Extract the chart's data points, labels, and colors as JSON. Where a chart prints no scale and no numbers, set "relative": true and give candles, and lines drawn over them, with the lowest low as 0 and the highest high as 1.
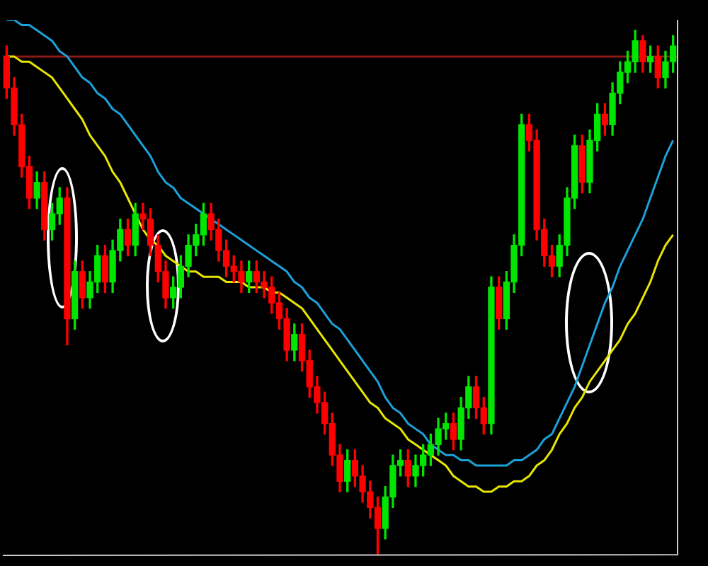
{
  "chart_data": {
    "type": "candlestick",
    "relative": true,
    "categories": [
      null,
      null,
      null,
      null,
      null,
      null,
      null,
      null,
      null,
      null,
      null,
      null,
      null,
      null,
      null,
      null,
      null,
      null,
      null,
      null,
      null,
      null,
      null,
      null,
      null,
      null,
      null,
      null,
      null,
      null,
      null,
      null,
      null,
      null,
      null,
      null,
      null,
      null,
      null,
      null,
      null,
      null,
      null,
      null,
      null,
      null,
      null,
      null,
      null,
      null,
      null,
      null,
      null,
      null,
      null,
      null,
      null,
      null,
      null,
      null,
      null,
      null,
      null,
      null,
      null,
      null,
      null,
      null,
      null,
      null,
      null,
      null,
      null,
      null,
      null,
      null,
      null,
      null,
      null,
      null,
      null,
      null,
      null,
      null,
      null,
      null,
      null,
      null,
      null
    ],
    "ohlc": [
      [
        0.95,
        0.97,
        0.87,
        0.89
      ],
      [
        0.89,
        0.91,
        0.8,
        0.82
      ],
      [
        0.82,
        0.84,
        0.72,
        0.74
      ],
      [
        0.74,
        0.76,
        0.66,
        0.68
      ],
      [
        0.68,
        0.73,
        0.66,
        0.71
      ],
      [
        0.71,
        0.73,
        0.6,
        0.62
      ],
      [
        0.62,
        0.67,
        0.6,
        0.65
      ],
      [
        0.65,
        0.7,
        0.63,
        0.68
      ],
      [
        0.68,
        0.7,
        0.4,
        0.45
      ],
      [
        0.45,
        0.56,
        0.43,
        0.54
      ],
      [
        0.54,
        0.56,
        0.47,
        0.49
      ],
      [
        0.49,
        0.54,
        0.47,
        0.52
      ],
      [
        0.52,
        0.59,
        0.5,
        0.57
      ],
      [
        0.57,
        0.59,
        0.5,
        0.52
      ],
      [
        0.52,
        0.6,
        0.5,
        0.58
      ],
      [
        0.58,
        0.64,
        0.56,
        0.62
      ],
      [
        0.62,
        0.64,
        0.57,
        0.59
      ],
      [
        0.59,
        0.67,
        0.57,
        0.65
      ],
      [
        0.65,
        0.67,
        0.62,
        0.64
      ],
      [
        0.64,
        0.66,
        0.57,
        0.59
      ],
      [
        0.59,
        0.61,
        0.52,
        0.54
      ],
      [
        0.54,
        0.56,
        0.47,
        0.49
      ],
      [
        0.49,
        0.53,
        0.47,
        0.51
      ],
      [
        0.51,
        0.57,
        0.49,
        0.55
      ],
      [
        0.55,
        0.61,
        0.53,
        0.59
      ],
      [
        0.59,
        0.63,
        0.57,
        0.61
      ],
      [
        0.61,
        0.67,
        0.59,
        0.65
      ],
      [
        0.65,
        0.67,
        0.6,
        0.62
      ],
      [
        0.62,
        0.64,
        0.56,
        0.58
      ],
      [
        0.58,
        0.6,
        0.53,
        0.55
      ],
      [
        0.55,
        0.57,
        0.52,
        0.54
      ],
      [
        0.54,
        0.56,
        0.5,
        0.52
      ],
      [
        0.52,
        0.56,
        0.5,
        0.54
      ],
      [
        0.54,
        0.56,
        0.5,
        0.52
      ],
      [
        0.52,
        0.54,
        0.49,
        0.51
      ],
      [
        0.51,
        0.53,
        0.46,
        0.48
      ],
      [
        0.48,
        0.5,
        0.43,
        0.45
      ],
      [
        0.45,
        0.47,
        0.37,
        0.39
      ],
      [
        0.39,
        0.44,
        0.37,
        0.42
      ],
      [
        0.42,
        0.44,
        0.35,
        0.37
      ],
      [
        0.37,
        0.39,
        0.3,
        0.32
      ],
      [
        0.32,
        0.34,
        0.27,
        0.29
      ],
      [
        0.29,
        0.31,
        0.23,
        0.25
      ],
      [
        0.25,
        0.27,
        0.17,
        0.19
      ],
      [
        0.19,
        0.21,
        0.12,
        0.14
      ],
      [
        0.14,
        0.2,
        0.12,
        0.18
      ],
      [
        0.18,
        0.2,
        0.13,
        0.15
      ],
      [
        0.15,
        0.17,
        0.1,
        0.12
      ],
      [
        0.12,
        0.14,
        0.07,
        0.09
      ],
      [
        0.09,
        0.11,
        0,
        0.05
      ],
      [
        0.05,
        0.13,
        0.03,
        0.11
      ],
      [
        0.11,
        0.19,
        0.09,
        0.17
      ],
      [
        0.17,
        0.2,
        0.15,
        0.18
      ],
      [
        0.18,
        0.2,
        0.13,
        0.15
      ],
      [
        0.15,
        0.19,
        0.13,
        0.17
      ],
      [
        0.17,
        0.21,
        0.15,
        0.19
      ],
      [
        0.19,
        0.23,
        0.17,
        0.21
      ],
      [
        0.21,
        0.26,
        0.19,
        0.24
      ],
      [
        0.24,
        0.27,
        0.22,
        0.25
      ],
      [
        0.25,
        0.27,
        0.2,
        0.22
      ],
      [
        0.22,
        0.3,
        0.2,
        0.28
      ],
      [
        0.28,
        0.34,
        0.26,
        0.32
      ],
      [
        0.32,
        0.34,
        0.26,
        0.28
      ],
      [
        0.28,
        0.3,
        0.23,
        0.25
      ],
      [
        0.25,
        0.53,
        0.23,
        0.51
      ],
      [
        0.51,
        0.53,
        0.43,
        0.45
      ],
      [
        0.45,
        0.54,
        0.43,
        0.52
      ],
      [
        0.52,
        0.61,
        0.5,
        0.59
      ],
      [
        0.59,
        0.84,
        0.57,
        0.82
      ],
      [
        0.82,
        0.84,
        0.77,
        0.79
      ],
      [
        0.79,
        0.81,
        0.6,
        0.62
      ],
      [
        0.62,
        0.64,
        0.55,
        0.57
      ],
      [
        0.57,
        0.59,
        0.53,
        0.55
      ],
      [
        0.55,
        0.61,
        0.53,
        0.59
      ],
      [
        0.59,
        0.7,
        0.57,
        0.68
      ],
      [
        0.68,
        0.8,
        0.66,
        0.78
      ],
      [
        0.78,
        0.8,
        0.69,
        0.71
      ],
      [
        0.71,
        0.81,
        0.69,
        0.79
      ],
      [
        0.79,
        0.86,
        0.77,
        0.84
      ],
      [
        0.84,
        0.86,
        0.8,
        0.82
      ],
      [
        0.82,
        0.9,
        0.8,
        0.88
      ],
      [
        0.88,
        0.94,
        0.86,
        0.92
      ],
      [
        0.92,
        0.96,
        0.9,
        0.94
      ],
      [
        0.94,
        1,
        0.92,
        0.98
      ],
      [
        0.98,
        0.99,
        0.92,
        0.94
      ],
      [
        0.94,
        0.97,
        0.92,
        0.95
      ],
      [
        0.95,
        0.97,
        0.89,
        0.91
      ],
      [
        0.91,
        0.96,
        0.89,
        0.94
      ],
      [
        0.94,
        0.99,
        0.92,
        0.97
      ]
    ],
    "series": [
      {
        "type": "line",
        "color": "#1ba1d8",
        "values": [
          1.02,
          1.02,
          1.01,
          1.01,
          1.0,
          0.99,
          0.98,
          0.96,
          0.95,
          0.93,
          0.91,
          0.9,
          0.88,
          0.87,
          0.85,
          0.84,
          0.82,
          0.8,
          0.78,
          0.76,
          0.73,
          0.71,
          0.7,
          0.68,
          0.67,
          0.66,
          0.65,
          0.64,
          0.63,
          0.62,
          0.61,
          0.6,
          0.59,
          0.58,
          0.57,
          0.56,
          0.55,
          0.54,
          0.52,
          0.51,
          0.49,
          0.48,
          0.46,
          0.44,
          0.43,
          0.41,
          0.39,
          0.37,
          0.35,
          0.33,
          0.3,
          0.28,
          0.27,
          0.25,
          0.24,
          0.23,
          0.21,
          0.2,
          0.19,
          0.19,
          0.18,
          0.18,
          0.17,
          0.17,
          0.17,
          0.17,
          0.17,
          0.18,
          0.18,
          0.19,
          0.2,
          0.22,
          0.23,
          0.26,
          0.29,
          0.32,
          0.36,
          0.4,
          0.44,
          0.48,
          0.51,
          0.55,
          0.58,
          0.61,
          0.64,
          0.68,
          0.72,
          0.76,
          0.79
        ]
      },
      {
        "type": "line",
        "color": "#e6e600",
        "values": [
          0.95,
          0.95,
          0.94,
          0.94,
          0.93,
          0.92,
          0.91,
          0.89,
          0.87,
          0.85,
          0.83,
          0.8,
          0.78,
          0.76,
          0.73,
          0.71,
          0.68,
          0.65,
          0.62,
          0.6,
          0.59,
          0.57,
          0.56,
          0.55,
          0.54,
          0.54,
          0.53,
          0.53,
          0.53,
          0.52,
          0.52,
          0.52,
          0.51,
          0.51,
          0.51,
          0.5,
          0.5,
          0.49,
          0.48,
          0.47,
          0.45,
          0.43,
          0.41,
          0.39,
          0.37,
          0.35,
          0.33,
          0.31,
          0.29,
          0.28,
          0.26,
          0.25,
          0.24,
          0.22,
          0.21,
          0.2,
          0.19,
          0.18,
          0.17,
          0.15,
          0.14,
          0.13,
          0.13,
          0.12,
          0.12,
          0.13,
          0.13,
          0.14,
          0.14,
          0.15,
          0.17,
          0.18,
          0.2,
          0.23,
          0.25,
          0.28,
          0.3,
          0.33,
          0.35,
          0.37,
          0.39,
          0.41,
          0.44,
          0.46,
          0.49,
          0.52,
          0.56,
          0.59,
          0.61
        ]
      }
    ],
    "ref_lines": [
      {
        "axis": "y",
        "value": 0.95,
        "color": "#8b1a1a"
      }
    ]
  }
}
